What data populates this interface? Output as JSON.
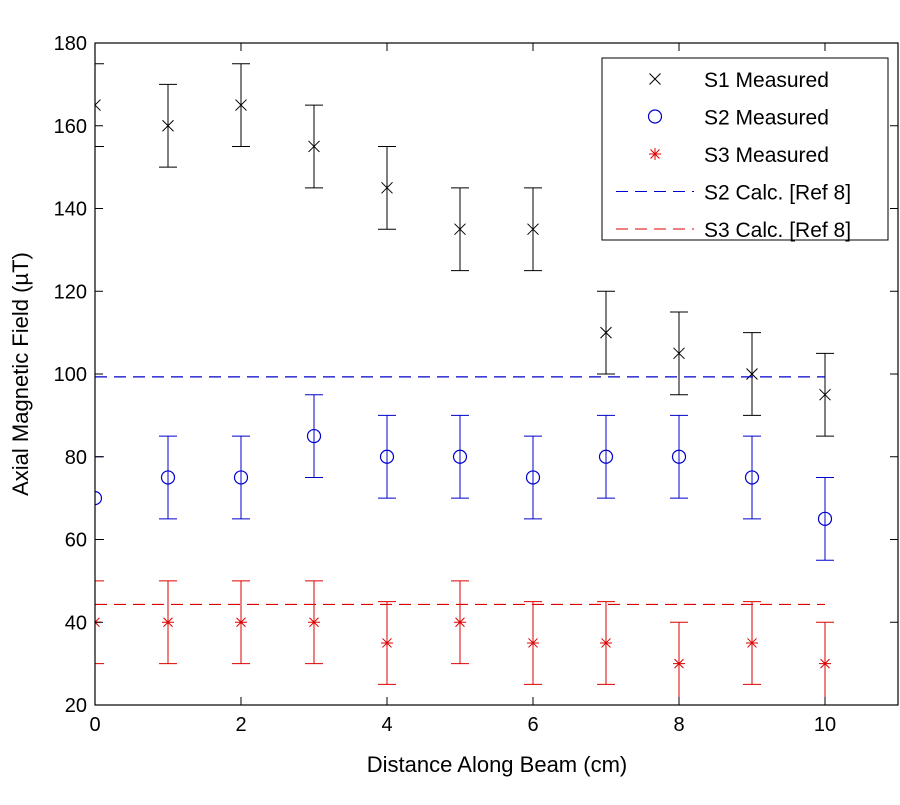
{
  "chart_data": {
    "type": "scatter",
    "title": "",
    "xlabel": "Distance Along Beam (cm)",
    "ylabel": "Axial Magnetic Field (µT)",
    "xlim": [
      0,
      11
    ],
    "ylim": [
      20,
      180
    ],
    "xticks": [
      0,
      2,
      4,
      6,
      8,
      10
    ],
    "yticks": [
      20,
      40,
      60,
      80,
      100,
      120,
      140,
      160,
      180
    ],
    "grid": false,
    "legend_position": "top-right",
    "x": [
      0,
      1,
      2,
      3,
      4,
      5,
      6,
      7,
      8,
      9,
      10
    ],
    "series": [
      {
        "name": "S1 Measured",
        "marker": "x",
        "color": "#000000",
        "values": [
          165,
          160,
          165,
          155,
          145,
          135,
          135,
          110,
          105,
          100,
          95
        ],
        "error": 10
      },
      {
        "name": "S2 Measured",
        "marker": "o",
        "color": "#0000cc",
        "values": [
          70,
          75,
          75,
          85,
          80,
          80,
          75,
          80,
          80,
          75,
          65
        ],
        "error": 10
      },
      {
        "name": "S3 Measured",
        "marker": "*",
        "color": "#dd0000",
        "values": [
          40,
          40,
          40,
          40,
          35,
          40,
          35,
          35,
          30,
          35,
          30
        ],
        "error": 10
      },
      {
        "name": "S2 Calc. [Ref 8]",
        "line": "dashed",
        "color": "#0000cc",
        "x_range": [
          0,
          10
        ],
        "value": 99.3
      },
      {
        "name": "S3 Calc. [Ref 8]",
        "line": "dashed",
        "color": "#dd0000",
        "x_range": [
          0,
          10
        ],
        "value": 44.3
      }
    ]
  }
}
